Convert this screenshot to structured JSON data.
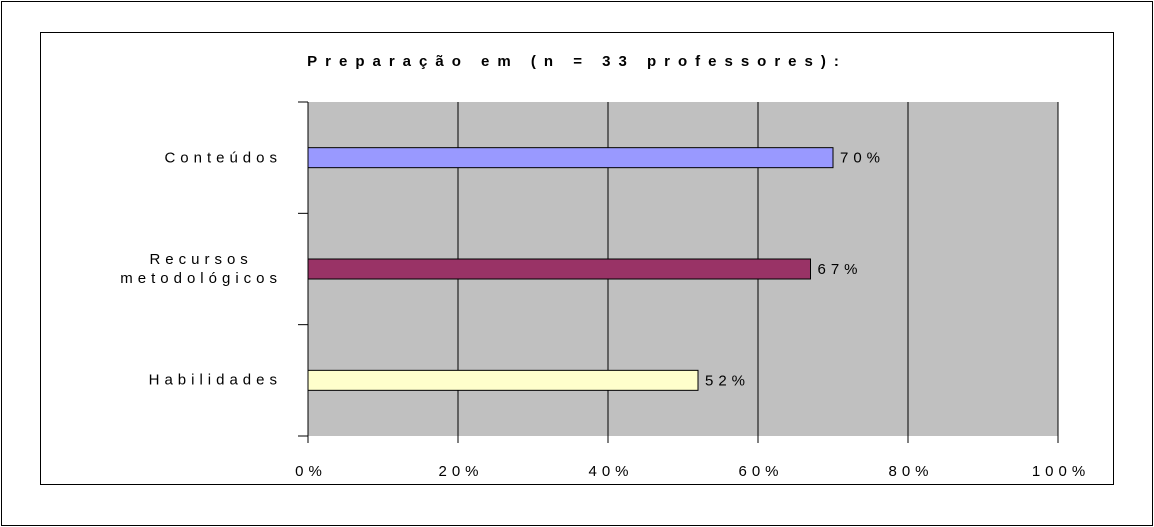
{
  "chart_data": {
    "type": "hbar",
    "title": "Preparação em (n = 33 professores):",
    "categories": [
      "Conteúdos",
      "Recursos\nmetodológicos",
      "Habilidades"
    ],
    "values": [
      70,
      67,
      52
    ],
    "value_labels": [
      "70%",
      "67%",
      "52%"
    ],
    "colors": [
      "#9999ff",
      "#993366",
      "#ffffcc"
    ],
    "xlim": [
      0,
      100
    ],
    "xticks": [
      {
        "value": 0,
        "label": "0%"
      },
      {
        "value": 20,
        "label": "20%"
      },
      {
        "value": 40,
        "label": "40%"
      },
      {
        "value": 60,
        "label": "60%"
      },
      {
        "value": 80,
        "label": "80%"
      },
      {
        "value": 100,
        "label": "100%"
      }
    ],
    "grid": true
  }
}
